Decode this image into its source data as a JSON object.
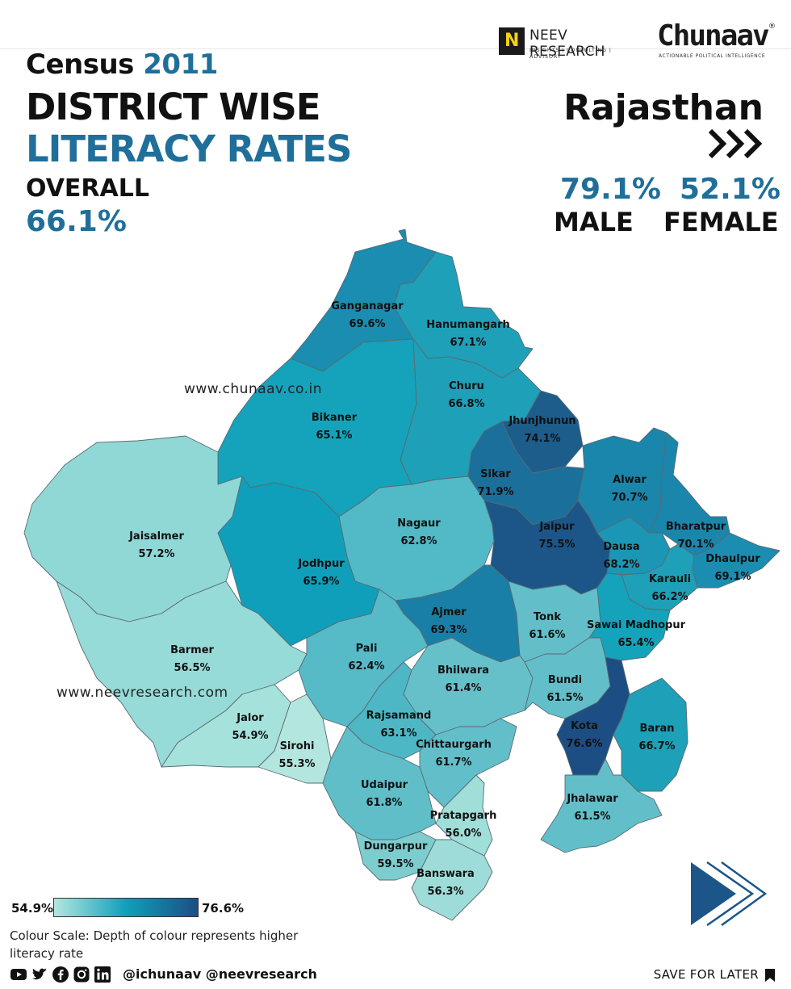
{
  "header": {
    "census_word": "Census",
    "census_year": "2011",
    "title_line1": "DISTRICT WISE",
    "title_line2": "LITERACY RATES",
    "overall_label": "OVERALL",
    "overall_value": "66.1%",
    "state": "Rajasthan",
    "male_value": "79.1%",
    "male_label": "MALE",
    "female_value": "52.1%",
    "female_label": "FEMALE"
  },
  "logos": {
    "neev_letter": "N",
    "neev_name": "NEEV RESEARCH",
    "neev_tagline": "INSIGHTS | CONSULTING | ADVISORY",
    "chunaav_name": "Chunaav",
    "chunaav_reg": "®",
    "chunaav_tagline": "ACTIONABLE POLITICAL INTELLIGENCE"
  },
  "watermarks": {
    "site1": "www.chunaav.co.in",
    "site2": "www.neevresearch.com"
  },
  "districts": [
    {
      "name": "Ganganagar",
      "value": "69.6%",
      "color": "#1a8db0"
    },
    {
      "name": "Hanumangarh",
      "value": "67.1%",
      "color": "#1ea0b8"
    },
    {
      "name": "Churu",
      "value": "66.8%",
      "color": "#1ea0b8"
    },
    {
      "name": "Bikaner",
      "value": "65.1%",
      "color": "#14a3bb"
    },
    {
      "name": "Jhunjhunun",
      "value": "74.1%",
      "color": "#1c5d8c"
    },
    {
      "name": "Sikar",
      "value": "71.9%",
      "color": "#1b6f9b"
    },
    {
      "name": "Alwar",
      "value": "70.7%",
      "color": "#1a86ab"
    },
    {
      "name": "Jaisalmer",
      "value": "57.2%",
      "color": "#8fd8d6"
    },
    {
      "name": "Nagaur",
      "value": "62.8%",
      "color": "#52b9c6"
    },
    {
      "name": "Jaipur",
      "value": "75.5%",
      "color": "#1c5689"
    },
    {
      "name": "Bharatpur",
      "value": "70.1%",
      "color": "#1a86ab"
    },
    {
      "name": "Dausa",
      "value": "68.2%",
      "color": "#1b97b5"
    },
    {
      "name": "Dhaulpur",
      "value": "69.1%",
      "color": "#1a8db0"
    },
    {
      "name": "Jodhpur",
      "value": "65.9%",
      "color": "#109fba"
    },
    {
      "name": "Karauli",
      "value": "66.2%",
      "color": "#1ea0b8"
    },
    {
      "name": "Ajmer",
      "value": "69.3%",
      "color": "#1a7fa6"
    },
    {
      "name": "Tonk",
      "value": "61.6%",
      "color": "#62bfc9"
    },
    {
      "name": "Sawai Madhopur",
      "value": "65.4%",
      "color": "#14a3bb"
    },
    {
      "name": "Barmer",
      "value": "56.5%",
      "color": "#97dbd8"
    },
    {
      "name": "Pali",
      "value": "62.4%",
      "color": "#56bac7"
    },
    {
      "name": "Bhilwara",
      "value": "61.4%",
      "color": "#66c0ca"
    },
    {
      "name": "Bundi",
      "value": "61.5%",
      "color": "#62bfc9"
    },
    {
      "name": "Jalor",
      "value": "54.9%",
      "color": "#a6e2dc"
    },
    {
      "name": "Rajsamand",
      "value": "63.1%",
      "color": "#4eb7c5"
    },
    {
      "name": "Kota",
      "value": "76.6%",
      "color": "#1c4e84"
    },
    {
      "name": "Baran",
      "value": "66.7%",
      "color": "#1ea0b8"
    },
    {
      "name": "Sirohi",
      "value": "55.3%",
      "color": "#b3e6df"
    },
    {
      "name": "Chittaurgarh",
      "value": "61.7%",
      "color": "#62bfc9"
    },
    {
      "name": "Udaipur",
      "value": "61.8%",
      "color": "#60bec9"
    },
    {
      "name": "Jhalawar",
      "value": "61.5%",
      "color": "#62bfc9"
    },
    {
      "name": "Pratapgarh",
      "value": "56.0%",
      "color": "#a0dfd9"
    },
    {
      "name": "Dungarpur",
      "value": "59.5%",
      "color": "#7dcdcf"
    },
    {
      "name": "Banswara",
      "value": "56.3%",
      "color": "#9ddcd8"
    }
  ],
  "legend": {
    "min": "54.9%",
    "max": "76.6%",
    "color_low": "#b3e6df",
    "color_mid": "#10a0ba",
    "color_high": "#1c4e84",
    "note": "Colour Scale: Depth of colour represents higher literacy rate"
  },
  "footer": {
    "social_icons": [
      "youtube-icon",
      "twitter-icon",
      "facebook-icon",
      "instagram-icon",
      "linkedin-icon"
    ],
    "handles": "@ichunaav @neevresearch",
    "save_label": "SAVE FOR LATER"
  }
}
